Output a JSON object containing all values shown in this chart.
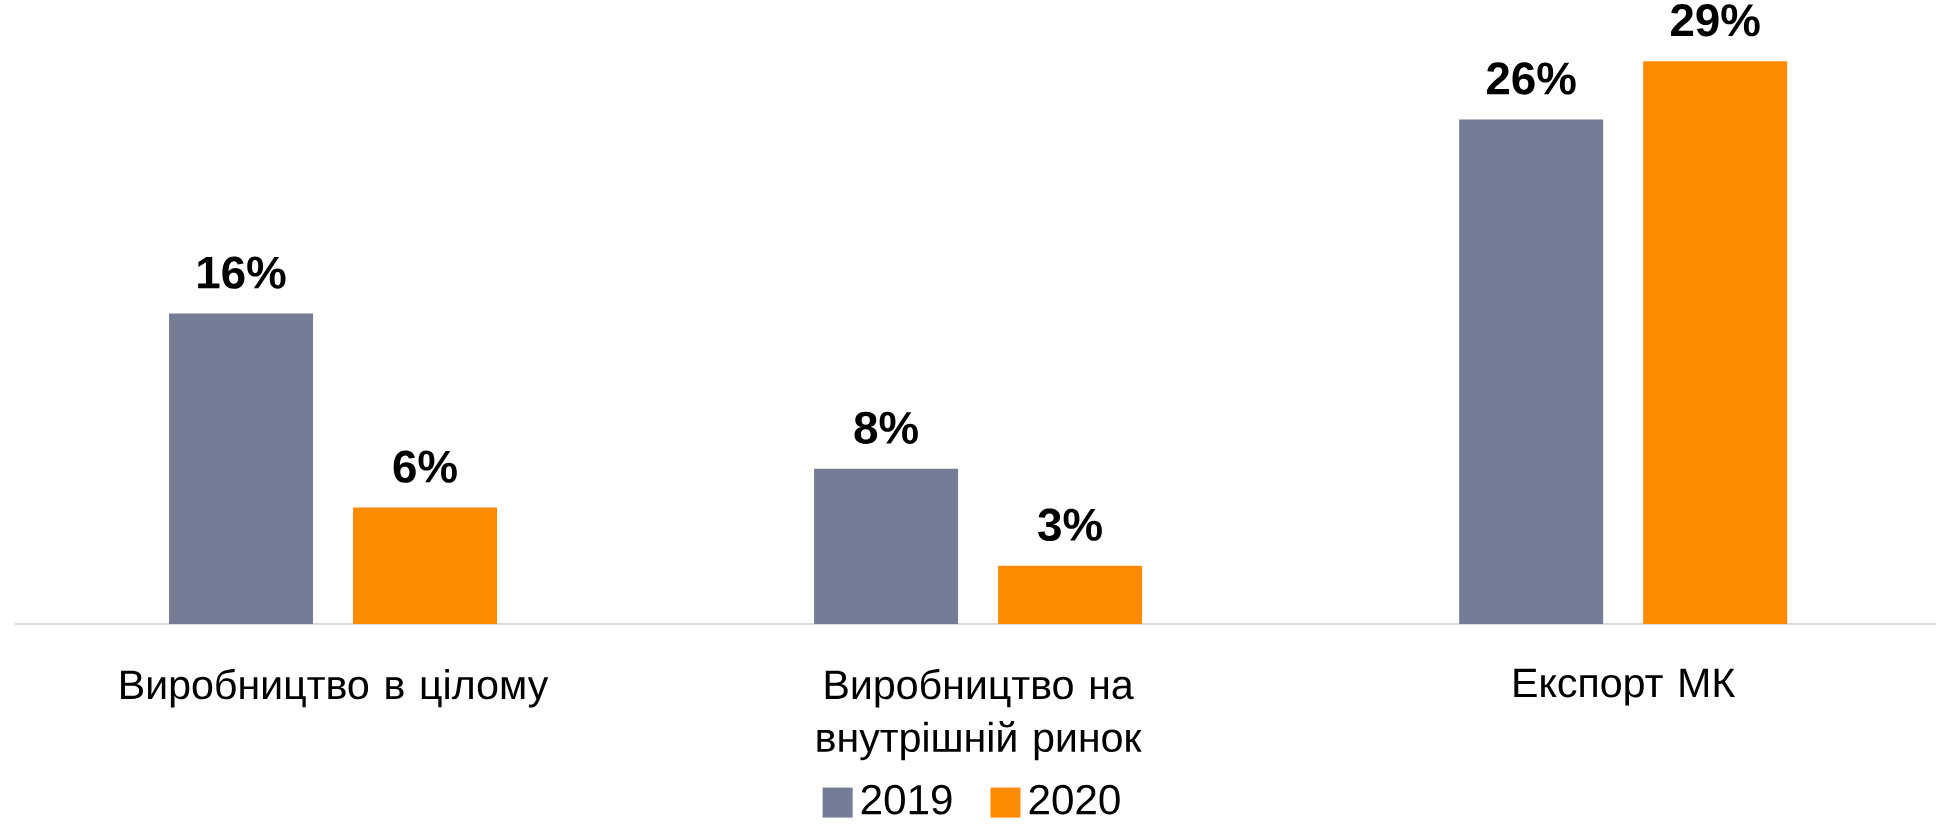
{
  "chart_data": {
    "type": "bar",
    "categories": [
      "Виробництво в цілому",
      "Виробництво на внутрішній ринок",
      "Експорт МК"
    ],
    "series": [
      {
        "name": "2019",
        "color": "#757d96",
        "values": [
          16,
          8,
          26
        ],
        "value_labels": [
          "16%",
          "8%",
          "26%"
        ]
      },
      {
        "name": "2020",
        "color": "#ff8c00",
        "values": [
          6,
          3,
          29
        ],
        "value_labels": [
          "6%",
          "3%",
          "29%"
        ]
      }
    ],
    "legend": "bottom",
    "tick_labels": "x"
  }
}
